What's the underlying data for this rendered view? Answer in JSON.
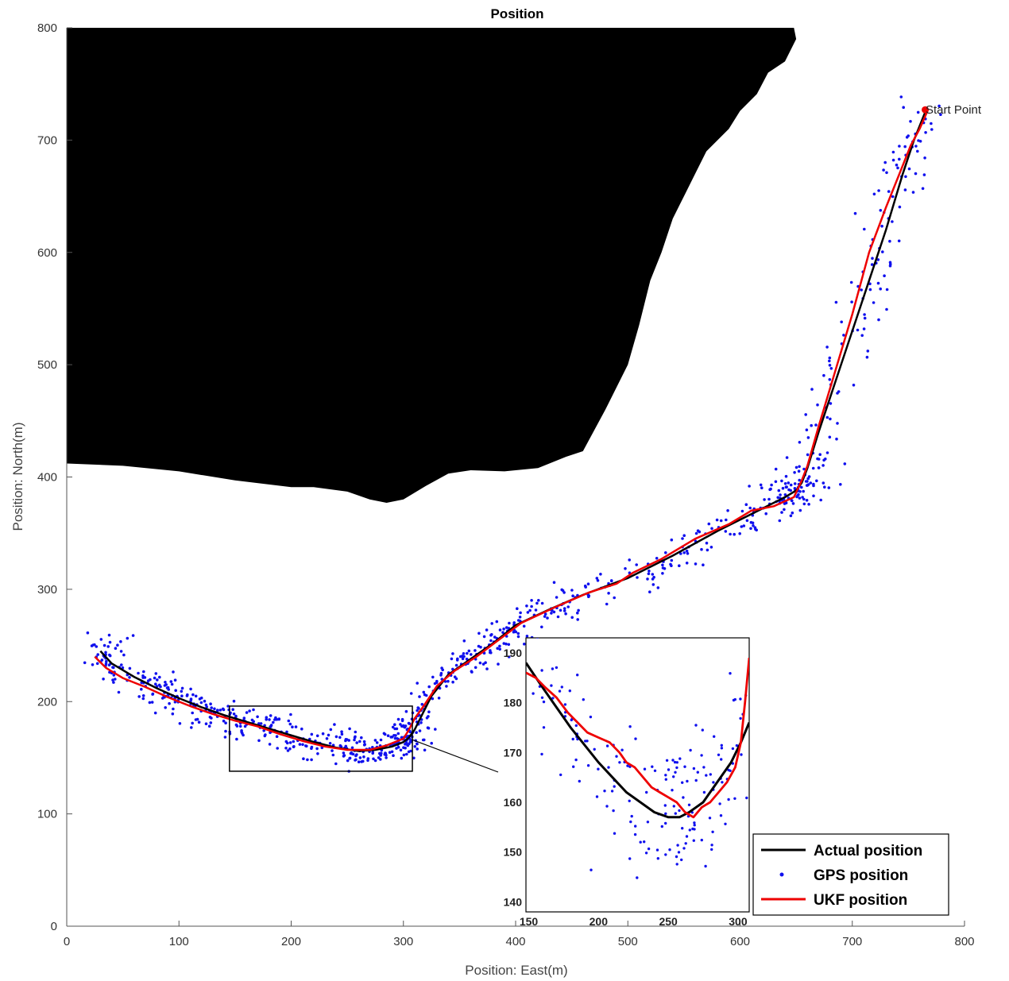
{
  "chart_data": {
    "type": "line",
    "title": "Position",
    "xlabel": "Position: East(m)",
    "ylabel": "Position: North(m)",
    "xlim": [
      0,
      800
    ],
    "ylim": [
      0,
      800
    ],
    "xticks": [
      "0",
      "100",
      "200",
      "300",
      "400",
      "500",
      "600",
      "700",
      "800"
    ],
    "yticks": [
      "0",
      "100",
      "200",
      "300",
      "400",
      "500",
      "600",
      "700",
      "800"
    ],
    "grid": false,
    "legend_position": "bottom-right",
    "annotation": "Start Point",
    "start_point": [
      765,
      727
    ],
    "obstacle_boundary": {
      "x": [
        0,
        50,
        100,
        150,
        200,
        220,
        250,
        270,
        285,
        300,
        320,
        340,
        360,
        390,
        420,
        445,
        460,
        480,
        500,
        510,
        520,
        530,
        540,
        550,
        560,
        570,
        580,
        590,
        600,
        615,
        625,
        640,
        650,
        648
      ],
      "y": [
        412,
        410,
        405,
        397,
        391,
        391,
        387,
        380,
        377,
        380,
        392,
        403,
        406,
        405,
        408,
        418,
        423,
        460,
        500,
        535,
        575,
        600,
        630,
        650,
        670,
        690,
        700,
        710,
        726,
        741,
        760,
        770,
        790,
        800
      ]
    },
    "series": [
      {
        "name": "Actual position",
        "color": "#000000",
        "x": [
          30,
          40,
          60,
          80,
          100,
          120,
          140,
          160,
          180,
          200,
          220,
          240,
          260,
          275,
          290,
          300,
          305,
          310,
          315,
          325,
          340,
          360,
          380,
          400,
          430,
          460,
          500,
          540,
          580,
          620,
          640,
          650,
          655,
          660,
          670,
          690,
          710,
          730,
          745,
          755,
          765
        ],
        "y": [
          245,
          234,
          222,
          212,
          203,
          195,
          188,
          182,
          176,
          170,
          164,
          159,
          156,
          157,
          160,
          164,
          168,
          175,
          185,
          205,
          224,
          238,
          252,
          268,
          282,
          295,
          310,
          330,
          352,
          372,
          382,
          388,
          395,
          408,
          440,
          500,
          560,
          620,
          670,
          700,
          725
        ]
      },
      {
        "name": "GPS position",
        "color": "#1010ee",
        "marker": "dot"
      },
      {
        "name": "UKF position",
        "color": "#ee0000",
        "x": [
          25,
          35,
          50,
          70,
          90,
          110,
          130,
          150,
          170,
          190,
          210,
          230,
          250,
          270,
          285,
          300,
          305,
          310,
          318,
          330,
          345,
          365,
          385,
          405,
          435,
          465,
          490,
          505,
          530,
          560,
          590,
          610,
          630,
          648,
          655,
          660,
          670,
          685,
          700,
          715,
          730,
          742,
          752,
          760,
          767
        ],
        "y": [
          240,
          230,
          221,
          213,
          204,
          196,
          189,
          183,
          178,
          171,
          165,
          160,
          157,
          157,
          161,
          167,
          175,
          185,
          196,
          214,
          227,
          240,
          255,
          270,
          284,
          297,
          305,
          315,
          327,
          345,
          358,
          370,
          374,
          382,
          397,
          410,
          445,
          495,
          545,
          600,
          640,
          670,
          695,
          710,
          726
        ]
      }
    ],
    "zoom_region": {
      "x": [
        145,
        308
      ],
      "y": [
        138,
        196
      ]
    },
    "inset": {
      "xlim": [
        148,
        308
      ],
      "ylim": [
        138,
        193
      ],
      "xticks": [
        "150",
        "200",
        "250",
        "300"
      ],
      "yticks": [
        "140",
        "150",
        "160",
        "170",
        "180",
        "190"
      ],
      "actual": {
        "x": [
          148,
          160,
          180,
          200,
          220,
          240,
          250,
          258,
          265,
          275,
          285,
          295,
          302,
          308
        ],
        "y": [
          188,
          183,
          175,
          168,
          162,
          158,
          157,
          157,
          158,
          160,
          164,
          168,
          172,
          176
        ]
      },
      "ukf": {
        "x": [
          148,
          155,
          162,
          170,
          178,
          185,
          192,
          200,
          208,
          215,
          220,
          226,
          232,
          238,
          244,
          250,
          256,
          262,
          268,
          274,
          280,
          286,
          292,
          298,
          302,
          305,
          308
        ],
        "y": [
          186,
          185,
          183,
          181,
          178,
          176,
          174,
          173,
          172,
          170,
          168,
          167,
          165,
          163,
          162,
          161,
          160,
          158,
          157,
          159,
          160,
          162,
          164,
          167,
          172,
          180,
          189
        ]
      }
    }
  }
}
